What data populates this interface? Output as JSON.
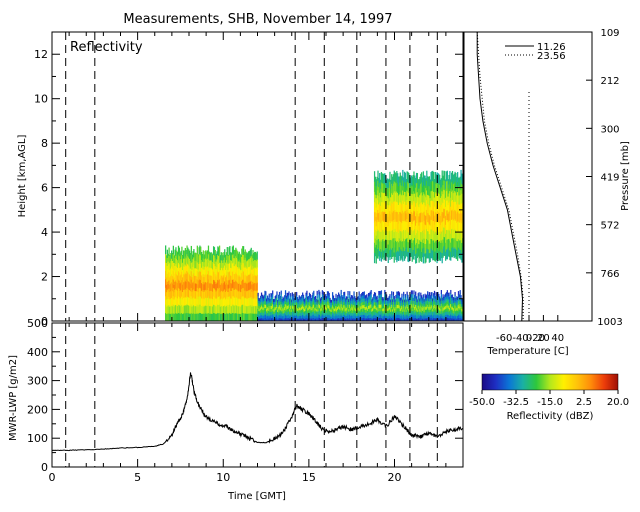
{
  "title": "Measurements, SHB, November 14, 1997",
  "chart_data": [
    {
      "type": "heatmap",
      "panel_label": "Reflectivity",
      "ylabel": "Height [km,AGL]",
      "xlim": [
        0,
        24
      ],
      "ylim": [
        0,
        13
      ],
      "yticks": [
        0,
        2,
        4,
        6,
        8,
        10,
        12
      ],
      "yticks_minor": [
        1,
        3,
        5,
        7,
        9,
        11,
        13
      ],
      "vertical_dashed_lines_x": [
        0.8,
        2.5,
        14.2,
        15.9,
        17.8,
        19.5,
        20.9,
        22.5
      ],
      "colorbar": {
        "label": "Reflectivity (dBZ)",
        "range": [
          -50.0,
          20.0
        ],
        "tick_labels": [
          "-50.0",
          "-32.5",
          "-15.0",
          "2.5",
          "20.0"
        ],
        "colors": [
          "#1a0a86",
          "#1e2ec2",
          "#0b76d6",
          "#1ab0a4",
          "#2ec83c",
          "#b4e81c",
          "#fff000",
          "#ffc30a",
          "#ff8c0a",
          "#ec3c0a",
          "#9e0f05"
        ]
      },
      "echo_regions": [
        {
          "x_start": 6.6,
          "x_end": 12.0,
          "bottom_km": 0.0,
          "top_km": 3.4,
          "core_dbz": 5
        },
        {
          "x_start": 12.0,
          "x_end": 24.0,
          "bottom_km": 0.0,
          "top_km": 1.4,
          "core_dbz": -15
        },
        {
          "x_start": 18.8,
          "x_end": 24.0,
          "bottom_km": 2.6,
          "top_km": 6.8,
          "core_dbz": 0
        }
      ]
    },
    {
      "type": "line",
      "xlabel": "Temperature [C]",
      "ylabel_right": "Pressure [mb]",
      "xticks": [
        -60,
        -40,
        -20,
        0,
        20,
        40
      ],
      "pressure_ticks": [
        "109",
        "212",
        "300",
        "419",
        "572",
        "766",
        "1003"
      ],
      "legend": [
        "11.26",
        "23.56"
      ],
      "series": [
        {
          "name": "11.26",
          "style": "solid",
          "x": [
            -72,
            -72,
            -70,
            -68,
            -64,
            -58,
            -50,
            -40,
            -30,
            -24,
            -18,
            -12,
            -9,
            -10
          ],
          "y": [
            13,
            12,
            11,
            10,
            9,
            8,
            7,
            6,
            5,
            4,
            3,
            2,
            1,
            0
          ]
        },
        {
          "name": "23.56",
          "style": "dotted",
          "x": [
            -72,
            -70,
            -68,
            -65,
            -62,
            -56,
            -48,
            -38,
            -28,
            -22,
            -16,
            -11,
            -8,
            -8
          ],
          "y": [
            13,
            12,
            11,
            10,
            9,
            8,
            7,
            6,
            5,
            4,
            3,
            2,
            1,
            0
          ]
        }
      ],
      "zero_reference": 0
    },
    {
      "type": "line",
      "xlabel": "Time [GMT]",
      "ylabel": "MWR-LWP [g/m2]",
      "xlim": [
        0,
        24
      ],
      "ylim": [
        0,
        500
      ],
      "xticks": [
        0,
        5,
        10,
        15,
        20
      ],
      "yticks": [
        0,
        100,
        200,
        300,
        400,
        500
      ],
      "vertical_dashed_lines_x": [
        0.8,
        2.5,
        14.2,
        15.9,
        17.8,
        19.5,
        20.9,
        22.5
      ],
      "series": [
        {
          "name": "LWP",
          "x": [
            0,
            1,
            2,
            3,
            4,
            5,
            6,
            6.5,
            7,
            7.3,
            7.6,
            7.9,
            8.1,
            8.3,
            8.6,
            9.0,
            9.5,
            10,
            10.5,
            11,
            11.5,
            12,
            12.5,
            13,
            13.5,
            14,
            14.3,
            14.6,
            15,
            15.4,
            15.8,
            16.2,
            16.6,
            17,
            17.5,
            18,
            18.5,
            19,
            19.5,
            20,
            20.5,
            21,
            21.5,
            22,
            22.5,
            23,
            23.5,
            24
          ],
          "y": [
            58,
            58,
            60,
            62,
            66,
            68,
            72,
            80,
            110,
            150,
            180,
            240,
            330,
            260,
            210,
            175,
            155,
            145,
            130,
            115,
            100,
            85,
            85,
            100,
            120,
            175,
            215,
            200,
            185,
            160,
            130,
            120,
            130,
            140,
            130,
            140,
            150,
            165,
            140,
            175,
            145,
            110,
            105,
            115,
            105,
            125,
            130,
            135
          ]
        }
      ]
    }
  ]
}
